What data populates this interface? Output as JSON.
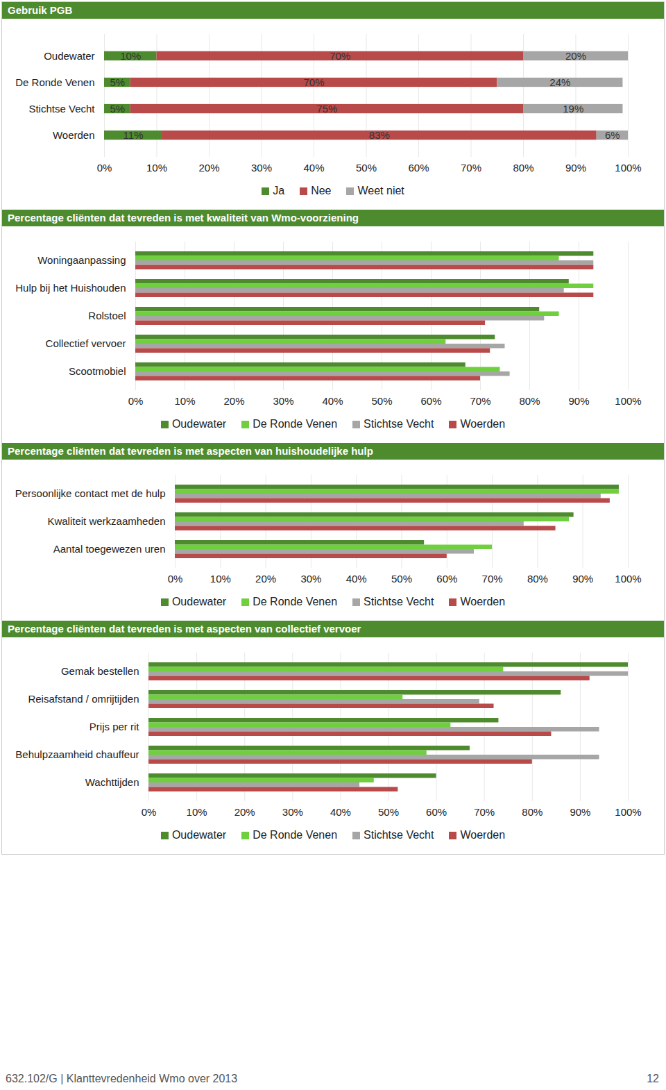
{
  "chart_data": [
    {
      "type": "bar",
      "title": "Gebruik PGB",
      "orientation": "horizontal",
      "stacked": true,
      "data_labels": true,
      "grid": true,
      "legend": "bottom",
      "categories": [
        "Oudewater",
        "De Ronde Venen",
        "Stichtse Vecht",
        "Woerden"
      ],
      "series": [
        {
          "name": "Ja",
          "color": "#4e8b2f",
          "values": [
            10,
            5,
            5,
            11
          ],
          "value_labels": [
            "10%",
            "5%",
            "5%",
            "11%"
          ]
        },
        {
          "name": "Nee",
          "color": "#b84a4a",
          "values": [
            70,
            70,
            75,
            83
          ],
          "value_labels": [
            "70%",
            "70%",
            "75%",
            "83%"
          ]
        },
        {
          "name": "Weet niet",
          "color": "#a6a6a6",
          "values": [
            20,
            24,
            19,
            6
          ],
          "value_labels": [
            "20%",
            "24%",
            "19%",
            "6%"
          ]
        }
      ],
      "xlim": [
        0,
        100
      ],
      "xticks": [
        {
          "value": 0,
          "label": "0%"
        },
        {
          "value": 10,
          "label": "10%"
        },
        {
          "value": 20,
          "label": "20%"
        },
        {
          "value": 30,
          "label": "30%"
        },
        {
          "value": 40,
          "label": "40%"
        },
        {
          "value": 50,
          "label": "50%"
        },
        {
          "value": 60,
          "label": "60%"
        },
        {
          "value": 70,
          "label": "70%"
        },
        {
          "value": 80,
          "label": "80%"
        },
        {
          "value": 90,
          "label": "90%"
        },
        {
          "value": 100,
          "label": "100%"
        }
      ]
    },
    {
      "type": "bar",
      "title": "Percentage cliënten dat tevreden is met kwaliteit van Wmo-voorziening",
      "orientation": "horizontal",
      "grid": true,
      "legend": "bottom",
      "categories": [
        "Woningaanpassing",
        "Hulp bij het Huishouden",
        "Rolstoel",
        "Collectief vervoer",
        "Scootmobiel"
      ],
      "series": [
        {
          "name": "Oudewater",
          "color": "#4e8b2f",
          "values": [
            93,
            88,
            82,
            73,
            67
          ]
        },
        {
          "name": "De Ronde Venen",
          "color": "#6fcf3f",
          "values": [
            86,
            93,
            86,
            63,
            74
          ]
        },
        {
          "name": "Stichtse Vecht",
          "color": "#a6a6a6",
          "values": [
            93,
            87,
            83,
            75,
            76
          ]
        },
        {
          "name": "Woerden",
          "color": "#b84a4a",
          "values": [
            93,
            93,
            71,
            72,
            70
          ]
        }
      ],
      "xlim": [
        0,
        100
      ],
      "xticks": [
        {
          "value": 0,
          "label": "0%"
        },
        {
          "value": 10,
          "label": "10%"
        },
        {
          "value": 20,
          "label": "20%"
        },
        {
          "value": 30,
          "label": "30%"
        },
        {
          "value": 40,
          "label": "40%"
        },
        {
          "value": 50,
          "label": "50%"
        },
        {
          "value": 60,
          "label": "60%"
        },
        {
          "value": 70,
          "label": "70%"
        },
        {
          "value": 80,
          "label": "80%"
        },
        {
          "value": 90,
          "label": "90%"
        },
        {
          "value": 100,
          "label": "100%"
        }
      ]
    },
    {
      "type": "bar",
      "title": "Percentage cliënten dat tevreden is met aspecten van huishoudelijke hulp",
      "orientation": "horizontal",
      "grid": true,
      "legend": "bottom",
      "categories": [
        "Persoonlijke contact met de hulp",
        "Kwaliteit werkzaamheden",
        "Aantal toegewezen uren"
      ],
      "series": [
        {
          "name": "Oudewater",
          "color": "#4e8b2f",
          "values": [
            98,
            88,
            55
          ]
        },
        {
          "name": "De Ronde Venen",
          "color": "#6fcf3f",
          "values": [
            98,
            87,
            70
          ]
        },
        {
          "name": "Stichtse Vecht",
          "color": "#a6a6a6",
          "values": [
            94,
            77,
            66
          ]
        },
        {
          "name": "Woerden",
          "color": "#b84a4a",
          "values": [
            96,
            84,
            60
          ]
        }
      ],
      "xlim": [
        0,
        100
      ],
      "xticks": [
        {
          "value": 0,
          "label": "0%"
        },
        {
          "value": 10,
          "label": "10%"
        },
        {
          "value": 20,
          "label": "20%"
        },
        {
          "value": 30,
          "label": "30%"
        },
        {
          "value": 40,
          "label": "40%"
        },
        {
          "value": 50,
          "label": "50%"
        },
        {
          "value": 60,
          "label": "60%"
        },
        {
          "value": 70,
          "label": "70%"
        },
        {
          "value": 80,
          "label": "80%"
        },
        {
          "value": 90,
          "label": "90%"
        },
        {
          "value": 100,
          "label": "100%"
        }
      ]
    },
    {
      "type": "bar",
      "title": "Percentage cliënten dat tevreden is met aspecten van collectief vervoer",
      "orientation": "horizontal",
      "grid": true,
      "legend": "bottom",
      "categories": [
        "Gemak bestellen",
        "Reisafstand / omrijtijden",
        "Prijs per rit",
        "Behulpzaamheid chauffeur",
        "Wachttijden"
      ],
      "series": [
        {
          "name": "Oudewater",
          "color": "#4e8b2f",
          "values": [
            100,
            86,
            73,
            67,
            60
          ]
        },
        {
          "name": "De Ronde Venen",
          "color": "#6fcf3f",
          "values": [
            74,
            53,
            63,
            58,
            47
          ]
        },
        {
          "name": "Stichtse Vecht",
          "color": "#a6a6a6",
          "values": [
            100,
            69,
            94,
            94,
            44
          ]
        },
        {
          "name": "Woerden",
          "color": "#b84a4a",
          "values": [
            92,
            72,
            84,
            80,
            52
          ]
        }
      ],
      "xlim": [
        0,
        100
      ],
      "xticks": [
        {
          "value": 0,
          "label": "0%"
        },
        {
          "value": 10,
          "label": "10%"
        },
        {
          "value": 20,
          "label": "20%"
        },
        {
          "value": 30,
          "label": "30%"
        },
        {
          "value": 40,
          "label": "40%"
        },
        {
          "value": 50,
          "label": "50%"
        },
        {
          "value": 60,
          "label": "60%"
        },
        {
          "value": 70,
          "label": "70%"
        },
        {
          "value": 80,
          "label": "80%"
        },
        {
          "value": 90,
          "label": "90%"
        },
        {
          "value": 100,
          "label": "100%"
        }
      ]
    }
  ],
  "footer": {
    "text": "632.102/G | Klanttevredenheid Wmo over 2013",
    "page": "12"
  }
}
